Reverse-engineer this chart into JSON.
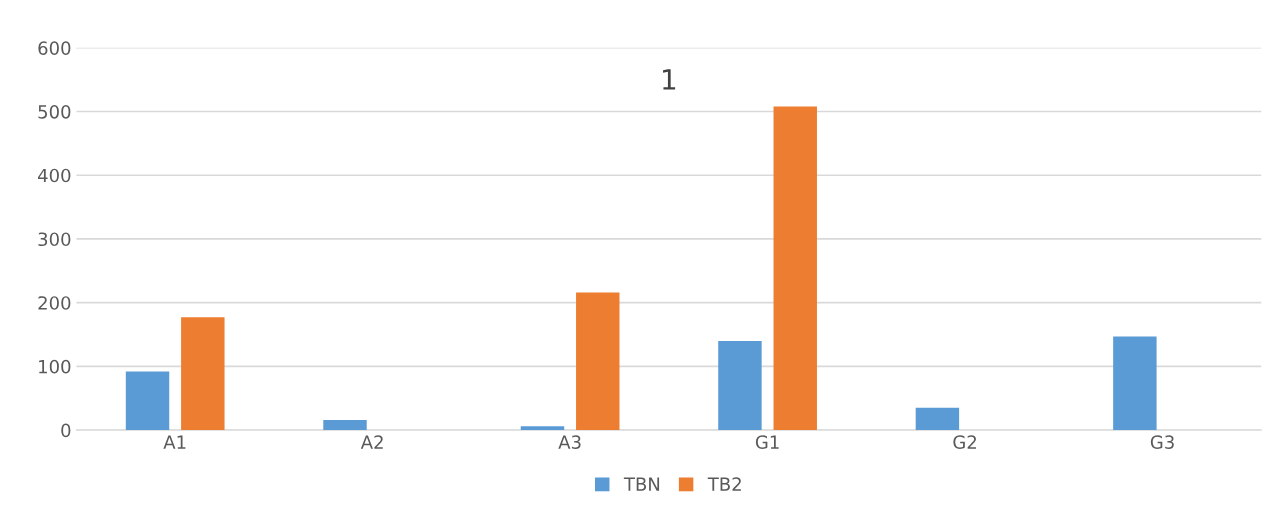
{
  "chart_data": {
    "type": "bar",
    "title": "1",
    "categories": [
      "A1",
      "A2",
      "A3",
      "G1",
      "G2",
      "G3"
    ],
    "series": [
      {
        "name": "TBN",
        "color": "#5b9bd5",
        "values": [
          92,
          16,
          6,
          140,
          35,
          147
        ]
      },
      {
        "name": "TB2",
        "color": "#ed7d31",
        "values": [
          177,
          null,
          216,
          508,
          null,
          null
        ]
      }
    ],
    "ylim": [
      0,
      600
    ],
    "yticks": [
      0,
      100,
      200,
      300,
      400,
      500,
      600
    ],
    "grid": "y",
    "legend": "bottom"
  }
}
